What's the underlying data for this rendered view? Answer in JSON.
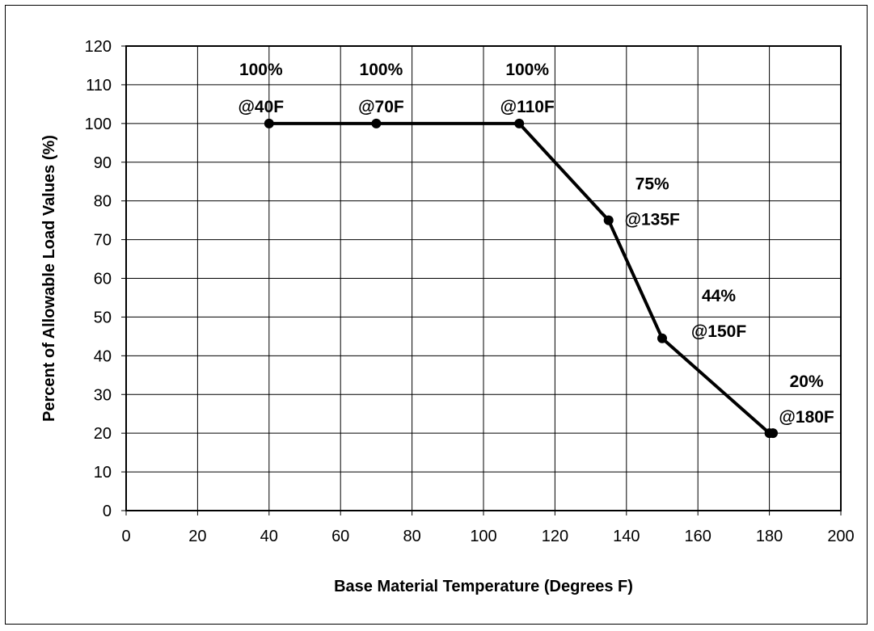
{
  "chart_data": {
    "type": "line",
    "title": "",
    "xlabel": "Base Material Temperature (Degrees F)",
    "ylabel": "Percent of Allowable Load Values (%)",
    "xlim": [
      0,
      200
    ],
    "ylim": [
      0,
      120
    ],
    "x_ticks": [
      0,
      20,
      40,
      60,
      80,
      100,
      120,
      140,
      160,
      180,
      200
    ],
    "y_ticks": [
      0,
      10,
      20,
      30,
      40,
      50,
      60,
      70,
      80,
      90,
      100,
      110,
      120
    ],
    "grid": true,
    "legend": "none",
    "line_color": "#000000",
    "series": [
      {
        "x": [
          40,
          70,
          110,
          135,
          150,
          180,
          181
        ],
        "y": [
          100,
          100,
          100,
          75,
          44.5,
          20,
          20
        ]
      }
    ],
    "annotations": [
      {
        "x": 40,
        "y": 100,
        "pct": "100%",
        "temp": "@40F"
      },
      {
        "x": 70,
        "y": 100,
        "pct": "100%",
        "temp": "@70F"
      },
      {
        "x": 110,
        "y": 100,
        "pct": "100%",
        "temp": "@110F"
      },
      {
        "x": 135,
        "y": 75,
        "pct": "75%",
        "temp": "@135F"
      },
      {
        "x": 150,
        "y": 44,
        "pct": "44%",
        "temp": "@150F"
      },
      {
        "x": 180,
        "y": 20,
        "pct": "20%",
        "temp": "@180F"
      }
    ]
  }
}
